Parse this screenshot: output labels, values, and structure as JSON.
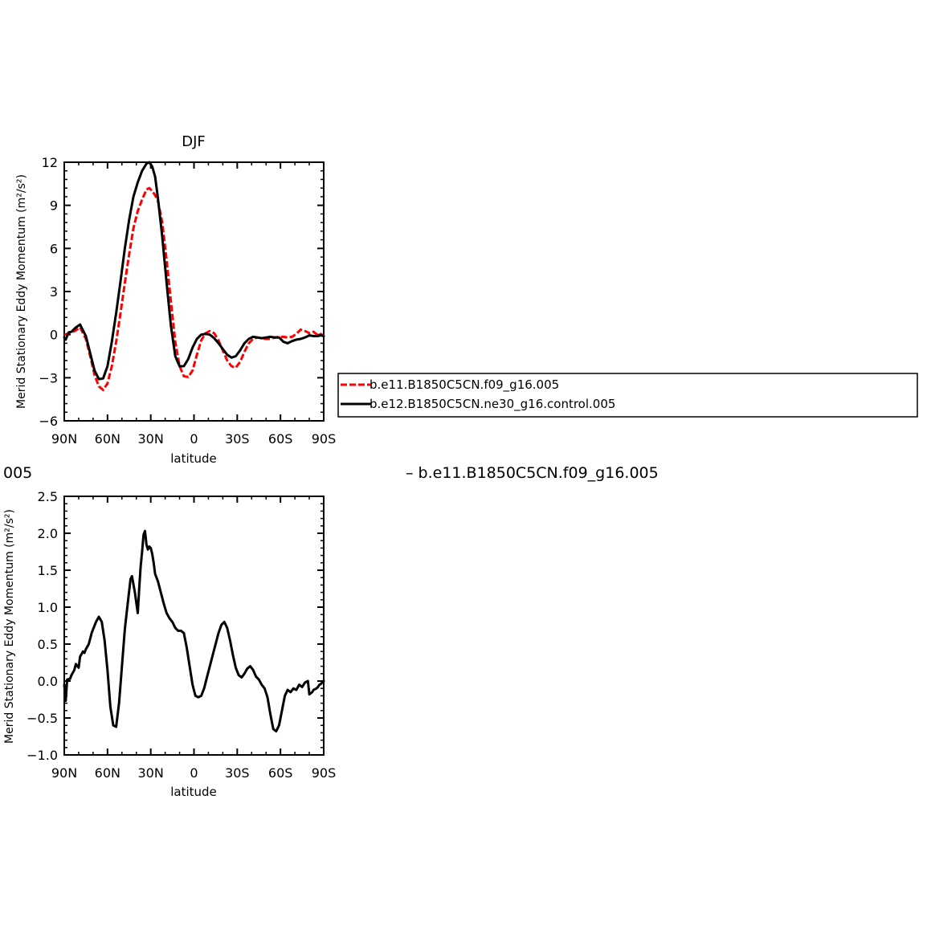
{
  "chart_data": [
    {
      "type": "line",
      "title": "DJF",
      "xlabel": "latitude",
      "ylabel": "Merid Stationary Eddy Momentum (m²/s²)",
      "x_tick_labels": [
        "90N",
        "60N",
        "30N",
        "0",
        "30S",
        "60S",
        "90S"
      ],
      "x_tick_values": [
        90,
        60,
        30,
        0,
        -30,
        -60,
        -90
      ],
      "xlim": [
        90,
        -90
      ],
      "ylim": [
        -6,
        12
      ],
      "y_tick_values": [
        -6,
        -3,
        0,
        3,
        6,
        9,
        12
      ],
      "y_tick_labels": [
        "−6",
        "−3",
        "0",
        "3",
        "6",
        "9",
        "12"
      ],
      "legend_placement": "right",
      "series": [
        {
          "name": "b.e11.B1850C5CN.f09_g16.005",
          "color": "#ff0000",
          "style": "dashed",
          "x": [
            90,
            88,
            85,
            82,
            79,
            75,
            72,
            69,
            66,
            63,
            60,
            57,
            54,
            51,
            48,
            45,
            42,
            39,
            36,
            33,
            31,
            29,
            27,
            25,
            22,
            19,
            16,
            13,
            10,
            7,
            4,
            1,
            -2,
            -5,
            -8,
            -11,
            -14,
            -17,
            -20,
            -23,
            -26,
            -29,
            -32,
            -35,
            -38,
            -41,
            -44,
            -47,
            -50,
            -53,
            -56,
            -59,
            -62,
            -65,
            -68,
            -71,
            -74,
            -77,
            -80,
            -83,
            -86,
            -88,
            -90
          ],
          "y": [
            0,
            0.05,
            0.15,
            0.3,
            0.5,
            -0.3,
            -1.5,
            -2.8,
            -3.6,
            -3.85,
            -3.4,
            -2.2,
            -0.5,
            1.5,
            3.6,
            5.6,
            7.4,
            8.6,
            9.4,
            10.1,
            10.2,
            10.0,
            9.7,
            9.3,
            7.8,
            5.2,
            2.3,
            -0.5,
            -2.2,
            -2.9,
            -2.95,
            -2.5,
            -1.4,
            -0.4,
            0.1,
            0.25,
            0.1,
            -0.4,
            -1.1,
            -1.8,
            -2.2,
            -2.3,
            -1.9,
            -1.2,
            -0.6,
            -0.3,
            -0.2,
            -0.25,
            -0.3,
            -0.3,
            -0.2,
            -0.15,
            -0.15,
            -0.2,
            -0.15,
            0.05,
            0.35,
            0.25,
            0.1,
            0.2,
            -0.05,
            0.05,
            -0.1
          ]
        },
        {
          "name": "b.e12.B1850C5CN.ne30_g16.control.005",
          "color": "#000000",
          "style": "solid",
          "x": [
            90,
            89,
            87,
            85,
            82,
            79,
            75,
            72,
            69,
            66,
            63,
            60,
            57,
            54,
            51,
            48,
            45,
            42,
            39,
            36,
            33,
            31,
            29,
            27,
            25,
            22,
            19,
            16,
            13,
            10,
            7,
            4,
            1,
            -2,
            -5,
            -8,
            -11,
            -14,
            -17,
            -20,
            -23,
            -26,
            -29,
            -32,
            -35,
            -38,
            -41,
            -44,
            -47,
            -50,
            -53,
            -56,
            -59,
            -62,
            -65,
            -68,
            -71,
            -74,
            -77,
            -80,
            -83,
            -86,
            -88,
            -90
          ],
          "y": [
            -0.2,
            -0.35,
            0.15,
            0.2,
            0.5,
            0.7,
            -0.1,
            -1.3,
            -2.5,
            -3.1,
            -3.05,
            -2.2,
            -0.5,
            1.5,
            3.7,
            6.0,
            8.0,
            9.6,
            10.6,
            11.4,
            11.9,
            12.0,
            11.7,
            11.0,
            9.5,
            6.8,
            3.6,
            0.6,
            -1.5,
            -2.2,
            -2.2,
            -1.7,
            -0.9,
            -0.3,
            0,
            0.05,
            0,
            -0.25,
            -0.6,
            -1.0,
            -1.4,
            -1.6,
            -1.5,
            -1.1,
            -0.6,
            -0.3,
            -0.15,
            -0.2,
            -0.25,
            -0.2,
            -0.15,
            -0.2,
            -0.2,
            -0.5,
            -0.6,
            -0.45,
            -0.35,
            -0.3,
            -0.2,
            -0.05,
            -0.1,
            -0.1,
            -0.05,
            -0.1
          ]
        }
      ]
    },
    {
      "type": "line",
      "title": "",
      "xlabel": "latitude",
      "ylabel": "Merid Stationary Eddy Momentum (m²/s²)",
      "x_tick_labels": [
        "90N",
        "60N",
        "30N",
        "0",
        "30S",
        "60S",
        "90S"
      ],
      "x_tick_values": [
        90,
        60,
        30,
        0,
        -30,
        -60,
        -90
      ],
      "xlim": [
        90,
        -90
      ],
      "ylim": [
        -1.0,
        2.5
      ],
      "y_tick_values": [
        -1.0,
        -0.5,
        0.0,
        0.5,
        1.0,
        1.5,
        2.0,
        2.5
      ],
      "y_tick_labels": [
        "−1.0",
        "−0.5",
        "0.0",
        "0.5",
        "1.0",
        "1.5",
        "2.0",
        "2.5"
      ],
      "series": [
        {
          "name": "",
          "color": "#000000",
          "style": "solid",
          "x": [
            90,
            89,
            88,
            86,
            85,
            83,
            82,
            80,
            79,
            77,
            76,
            75,
            73,
            71,
            70,
            68,
            66,
            64,
            62,
            60,
            58,
            56,
            54,
            52,
            50,
            48,
            46,
            44,
            43,
            41,
            39,
            38,
            37,
            36,
            35,
            34,
            33,
            32,
            31,
            30,
            29,
            28,
            27,
            25,
            23,
            21,
            19,
            17,
            15,
            13,
            11,
            9,
            7,
            5,
            3,
            1,
            -1,
            -3,
            -5,
            -7,
            -9,
            -11,
            -13,
            -15,
            -17,
            -19,
            -21,
            -23,
            -25,
            -27,
            -29,
            -31,
            -33,
            -35,
            -37,
            -39,
            -41,
            -43,
            -45,
            -47,
            -49,
            -51,
            -53,
            -55,
            -57,
            -59,
            -61,
            -63,
            -65,
            -67,
            -69,
            -71,
            -73,
            -75,
            -77,
            -79,
            -80,
            -82,
            -83,
            -85,
            -86,
            -87,
            -88,
            -89,
            -90
          ],
          "y": [
            -0.05,
            -0.27,
            0.02,
            0.03,
            0.08,
            0.15,
            0.23,
            0.18,
            0.33,
            0.4,
            0.38,
            0.43,
            0.5,
            0.65,
            0.7,
            0.8,
            0.87,
            0.8,
            0.55,
            0.15,
            -0.35,
            -0.6,
            -0.62,
            -0.3,
            0.2,
            0.7,
            1.05,
            1.38,
            1.42,
            1.2,
            0.92,
            1.25,
            1.55,
            1.75,
            1.98,
            2.03,
            1.85,
            1.78,
            1.82,
            1.8,
            1.72,
            1.6,
            1.45,
            1.35,
            1.2,
            1.05,
            0.92,
            0.85,
            0.8,
            0.72,
            0.68,
            0.68,
            0.65,
            0.45,
            0.2,
            -0.05,
            -0.2,
            -0.22,
            -0.2,
            -0.1,
            0.05,
            0.2,
            0.35,
            0.5,
            0.65,
            0.76,
            0.8,
            0.72,
            0.55,
            0.35,
            0.18,
            0.08,
            0.05,
            0.1,
            0.17,
            0.2,
            0.15,
            0.06,
            0.02,
            -0.05,
            -0.1,
            -0.22,
            -0.45,
            -0.65,
            -0.68,
            -0.6,
            -0.4,
            -0.2,
            -0.12,
            -0.15,
            -0.1,
            -0.12,
            -0.05,
            -0.08,
            -0.02,
            0.0,
            -0.18,
            -0.15,
            -0.12,
            -0.1,
            -0.08,
            -0.05,
            -0.04,
            -0.02,
            0.0
          ]
        }
      ]
    }
  ],
  "labels": {
    "top_left_number": "005",
    "top_right_caption": "– b.e11.B1850C5CN.f09_g16.005"
  },
  "colors": {
    "background": "#ffffff",
    "axis": "#000000",
    "series_red": "#ff0000",
    "series_black": "#000000"
  }
}
